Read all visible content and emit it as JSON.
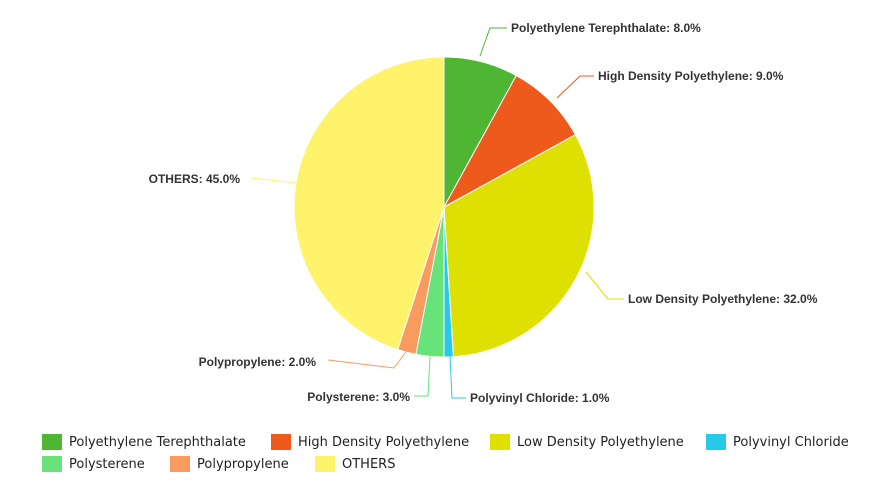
{
  "chart_data": {
    "type": "pie",
    "series": [
      {
        "name": "Polyethylene Terephthalate",
        "value": 8.0,
        "label": "Polyethylene Terephthalate: 8.0%",
        "color": "#4fb634"
      },
      {
        "name": "High Density Polyethylene",
        "value": 9.0,
        "label": "High Density Polyethylene: 9.0%",
        "color": "#ee5a1b"
      },
      {
        "name": "Low Density Polyethylene",
        "value": 32.0,
        "label": "Low Density Polyethylene: 32.0%",
        "color": "#dde000"
      },
      {
        "name": "Polyvinyl Chloride",
        "value": 1.0,
        "label": "Polyvinyl Chloride: 1.0%",
        "color": "#26c9e8"
      },
      {
        "name": "Polysterene",
        "value": 3.0,
        "label": "Polysterene: 3.0%",
        "color": "#67e37a"
      },
      {
        "name": "Polypropylene",
        "value": 2.0,
        "label": "Polypropylene: 2.0%",
        "color": "#f99a5f"
      },
      {
        "name": "OTHERS",
        "value": 45.0,
        "label": "OTHERS: 45.0%",
        "color": "#fff36b"
      }
    ],
    "legend_position": "bottom"
  }
}
